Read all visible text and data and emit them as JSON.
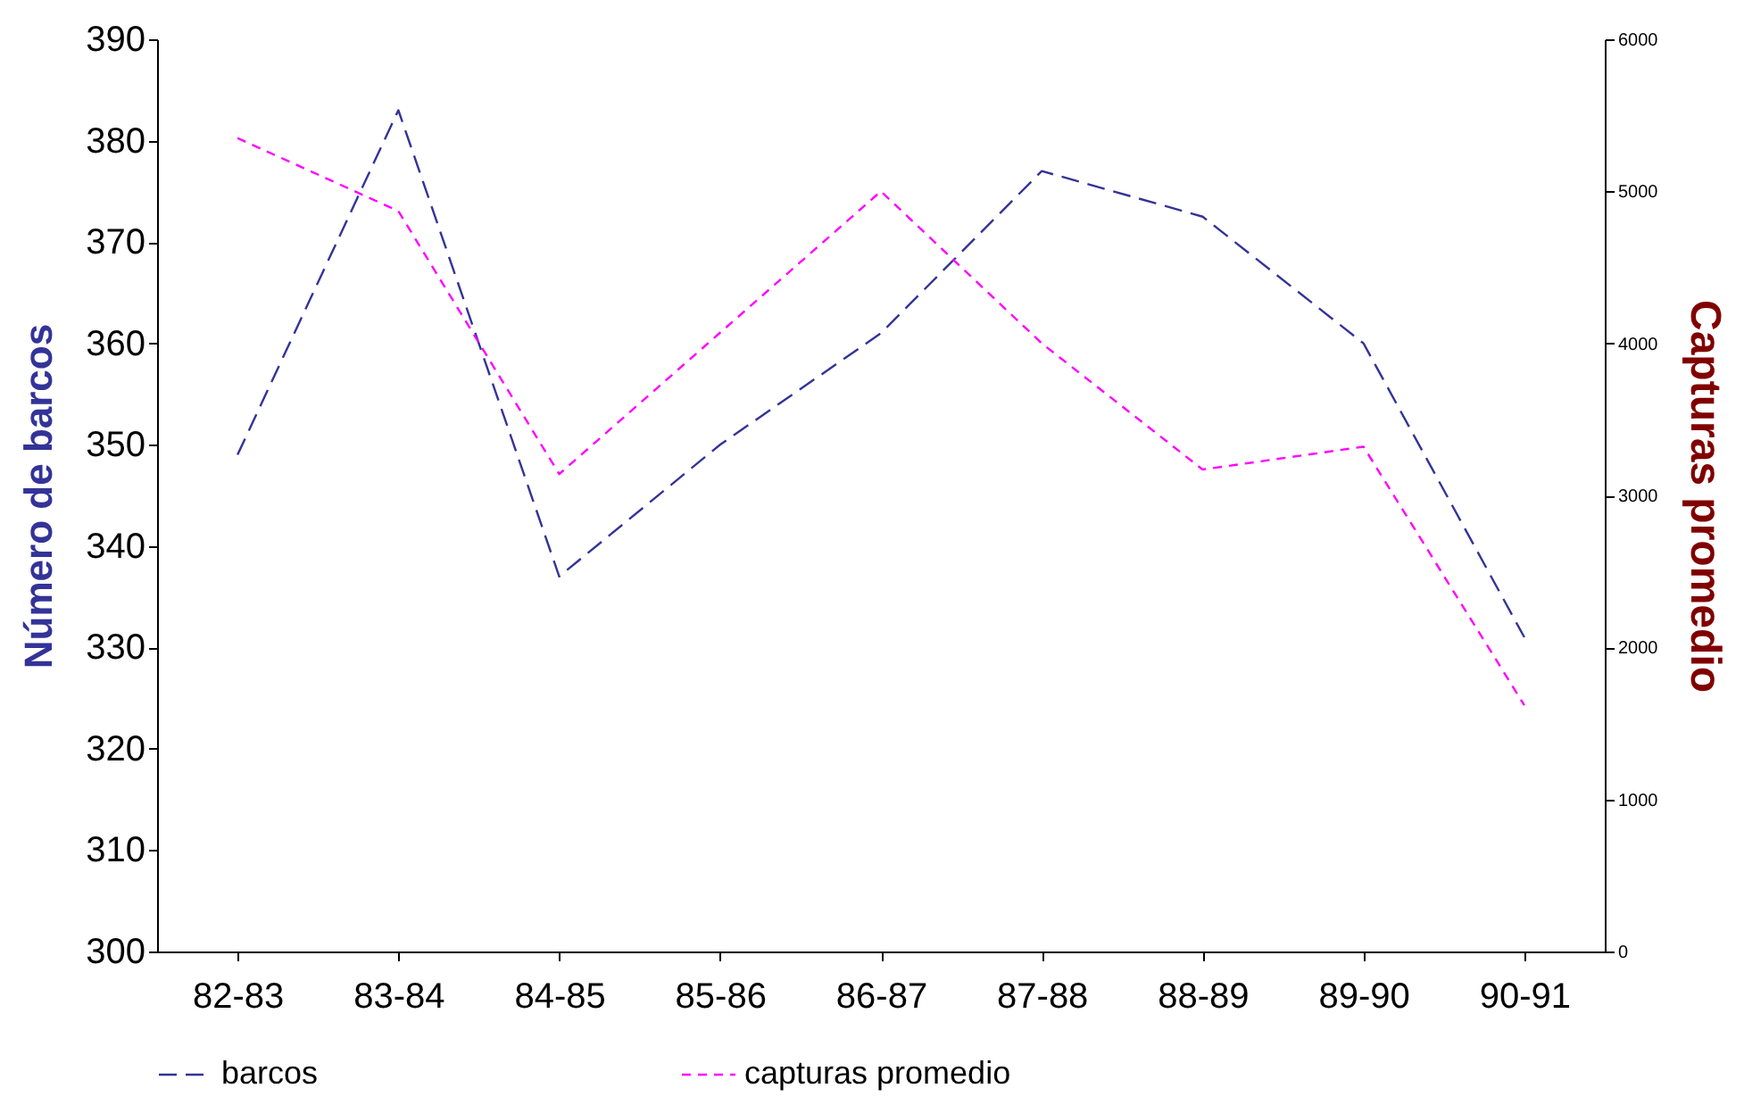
{
  "chart_data": {
    "type": "line",
    "ylabel": "Número de barcos",
    "y2label": "Capturas promedio",
    "categories": [
      "82-83",
      "83-84",
      "84-85",
      "85-86",
      "86-87",
      "87-88",
      "88-89",
      "89-90",
      "90-91"
    ],
    "ylim": [
      300,
      390
    ],
    "yticks": [
      300,
      310,
      320,
      330,
      340,
      350,
      360,
      370,
      380,
      390
    ],
    "y2lim": [
      0,
      6000
    ],
    "y2ticks": [
      0,
      1000,
      2000,
      3000,
      4000,
      5000,
      6000
    ],
    "series": [
      {
        "name": "barcos",
        "color": "#333399",
        "line_style": "dashed",
        "values": [
          349,
          383,
          337,
          350,
          361,
          377,
          372.5,
          360,
          331
        ]
      },
      {
        "name": "capturas promedio",
        "color": "#ff00ff",
        "line_style": "dotted",
        "axis": "y2",
        "values": [
          5350,
          4870,
          3140,
          4070,
          5000,
          4000,
          3170,
          3320,
          1620
        ]
      }
    ],
    "grid": false,
    "legend": "bottom",
    "marker": "none"
  }
}
